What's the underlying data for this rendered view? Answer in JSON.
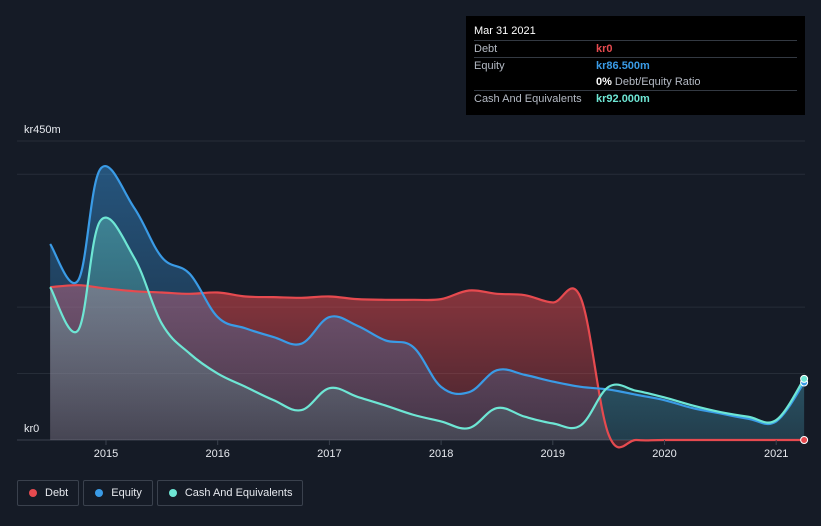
{
  "tooltip": {
    "date": "Mar 31 2021",
    "rows": [
      {
        "label": "Debt",
        "value": "kr0",
        "color": "#e64a4f"
      },
      {
        "label": "Equity",
        "value": "kr86.500m",
        "color": "#3a9be6"
      },
      {
        "label": "",
        "value": "0%",
        "suffix": "Debt/Equity Ratio",
        "color": "#ffffff"
      },
      {
        "label": "Cash And Equivalents",
        "value": "kr92.000m",
        "color": "#6ee6d4"
      }
    ]
  },
  "legend": [
    {
      "label": "Debt",
      "color": "#e64a4f"
    },
    {
      "label": "Equity",
      "color": "#3a9be6"
    },
    {
      "label": "Cash And Equivalents",
      "color": "#6ee6d4"
    }
  ],
  "chart_data": {
    "type": "area",
    "y_top_label": "kr450m",
    "y_bottom_label": "kr0",
    "ylim": [
      0,
      450
    ],
    "xlim": [
      2014.5,
      2021.25
    ],
    "x_ticks": [
      2015,
      2016,
      2017,
      2018,
      2019,
      2020,
      2021
    ],
    "x_tick_labels": [
      "2015",
      "2016",
      "2017",
      "2018",
      "2019",
      "2020",
      "2021"
    ],
    "series": [
      {
        "name": "Debt",
        "color": "#e64a4f",
        "points": [
          [
            2014.5,
            230
          ],
          [
            2014.75,
            233
          ],
          [
            2015.0,
            228
          ],
          [
            2015.25,
            224
          ],
          [
            2015.5,
            222
          ],
          [
            2015.75,
            220
          ],
          [
            2016.0,
            222
          ],
          [
            2016.25,
            216
          ],
          [
            2016.5,
            215
          ],
          [
            2016.75,
            214
          ],
          [
            2017.0,
            216
          ],
          [
            2017.25,
            212
          ],
          [
            2017.5,
            211
          ],
          [
            2017.75,
            211
          ],
          [
            2018.0,
            212
          ],
          [
            2018.25,
            225
          ],
          [
            2018.5,
            220
          ],
          [
            2018.75,
            218
          ],
          [
            2019.0,
            207
          ],
          [
            2019.25,
            214
          ],
          [
            2019.5,
            8
          ],
          [
            2019.75,
            0
          ],
          [
            2020.0,
            0
          ],
          [
            2020.5,
            0
          ],
          [
            2021.0,
            0
          ],
          [
            2021.25,
            0
          ]
        ]
      },
      {
        "name": "Equity",
        "color": "#3a9be6",
        "points": [
          [
            2014.5,
            295
          ],
          [
            2014.75,
            240
          ],
          [
            2014.95,
            408
          ],
          [
            2015.25,
            350
          ],
          [
            2015.5,
            275
          ],
          [
            2015.75,
            250
          ],
          [
            2016.0,
            185
          ],
          [
            2016.25,
            168
          ],
          [
            2016.5,
            155
          ],
          [
            2016.75,
            145
          ],
          [
            2017.0,
            185
          ],
          [
            2017.25,
            172
          ],
          [
            2017.5,
            150
          ],
          [
            2017.75,
            140
          ],
          [
            2018.0,
            80
          ],
          [
            2018.25,
            72
          ],
          [
            2018.5,
            105
          ],
          [
            2018.75,
            98
          ],
          [
            2019.0,
            88
          ],
          [
            2019.25,
            80
          ],
          [
            2019.5,
            76
          ],
          [
            2019.75,
            68
          ],
          [
            2020.0,
            60
          ],
          [
            2020.25,
            48
          ],
          [
            2020.5,
            40
          ],
          [
            2020.75,
            32
          ],
          [
            2021.0,
            28
          ],
          [
            2021.25,
            86.5
          ]
        ]
      },
      {
        "name": "Cash And Equivalents",
        "color": "#6ee6d4",
        "points": [
          [
            2014.5,
            230
          ],
          [
            2014.75,
            165
          ],
          [
            2014.95,
            330
          ],
          [
            2015.25,
            275
          ],
          [
            2015.5,
            175
          ],
          [
            2015.75,
            130
          ],
          [
            2016.0,
            100
          ],
          [
            2016.25,
            80
          ],
          [
            2016.5,
            60
          ],
          [
            2016.75,
            45
          ],
          [
            2017.0,
            78
          ],
          [
            2017.25,
            65
          ],
          [
            2017.5,
            52
          ],
          [
            2017.75,
            38
          ],
          [
            2018.0,
            28
          ],
          [
            2018.25,
            18
          ],
          [
            2018.5,
            48
          ],
          [
            2018.75,
            35
          ],
          [
            2019.0,
            25
          ],
          [
            2019.25,
            22
          ],
          [
            2019.5,
            80
          ],
          [
            2019.75,
            74
          ],
          [
            2020.0,
            64
          ],
          [
            2020.25,
            52
          ],
          [
            2020.5,
            42
          ],
          [
            2020.75,
            35
          ],
          [
            2021.0,
            30
          ],
          [
            2021.25,
            92
          ]
        ]
      }
    ]
  }
}
